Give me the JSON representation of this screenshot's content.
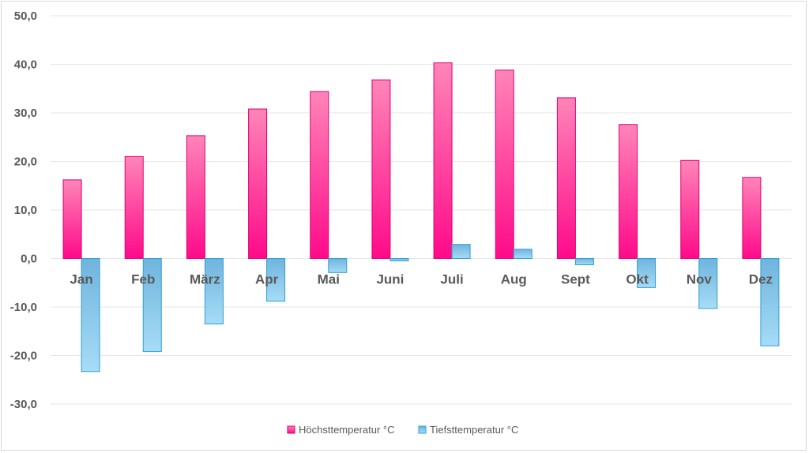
{
  "chart_data": {
    "type": "bar",
    "categories": [
      "Jan",
      "Feb",
      "März",
      "Apr",
      "Mai",
      "Juni",
      "Juli",
      "Aug",
      "Sept",
      "Okt",
      "Nov",
      "Dez"
    ],
    "series": [
      {
        "name": "Höchsttemperatur °C",
        "color": "#ff3399",
        "values": [
          16.2,
          21.0,
          25.3,
          30.8,
          34.4,
          36.8,
          40.3,
          38.8,
          33.1,
          27.6,
          20.2,
          16.7
        ]
      },
      {
        "name": "Tiefsttemperatur °C",
        "color": "#5bb8e8",
        "values": [
          -23.3,
          -19.2,
          -13.5,
          -8.8,
          -2.9,
          -0.5,
          2.9,
          1.9,
          -1.3,
          -6.0,
          -10.3,
          -18.0
        ]
      }
    ],
    "yticks": [
      "50,0",
      "40,0",
      "30,0",
      "20,0",
      "10,0",
      "0,0",
      "-10,0",
      "-20,0",
      "-30,0"
    ],
    "ylim": [
      -30,
      50
    ],
    "grid": true,
    "legend": "bottom",
    "title": "",
    "xlabel": "",
    "ylabel": ""
  }
}
